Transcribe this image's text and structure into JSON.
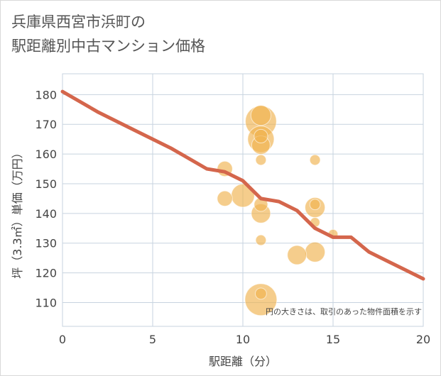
{
  "title_line1": "兵庫県西宮市浜町の",
  "title_line2": "駅距離別中古マンション価格",
  "chart_data": {
    "type": "scatter",
    "xlabel": "駅距離（分）",
    "ylabel": "坪（3.3㎡）単価（万円）",
    "xlim": [
      0,
      20
    ],
    "ylim": [
      102,
      187
    ],
    "xticks": [
      0,
      5,
      10,
      15,
      20
    ],
    "yticks": [
      110,
      120,
      130,
      140,
      150,
      160,
      170,
      180
    ],
    "grid": true,
    "note": "円の大きさは、取引のあった物件面積を示す",
    "bubble_color": "#f0b24f",
    "line_color": "#d4664c",
    "bubbles": [
      {
        "x": 9,
        "y": 155,
        "size": 1.2
      },
      {
        "x": 9,
        "y": 145,
        "size": 1.2
      },
      {
        "x": 10,
        "y": 146,
        "size": 2.2
      },
      {
        "x": 11,
        "y": 173,
        "size": 1.8
      },
      {
        "x": 11,
        "y": 171,
        "size": 3.2
      },
      {
        "x": 11,
        "y": 166,
        "size": 1.0
      },
      {
        "x": 11,
        "y": 165,
        "size": 2.6
      },
      {
        "x": 11,
        "y": 163,
        "size": 1.6
      },
      {
        "x": 11,
        "y": 158,
        "size": 0.6
      },
      {
        "x": 11,
        "y": 143,
        "size": 1.0
      },
      {
        "x": 11,
        "y": 140,
        "size": 1.7
      },
      {
        "x": 11,
        "y": 131,
        "size": 0.6
      },
      {
        "x": 11,
        "y": 113,
        "size": 0.7
      },
      {
        "x": 11,
        "y": 111,
        "size": 3.3
      },
      {
        "x": 13,
        "y": 126,
        "size": 1.7
      },
      {
        "x": 14,
        "y": 158,
        "size": 0.6
      },
      {
        "x": 14,
        "y": 143,
        "size": 0.6
      },
      {
        "x": 14,
        "y": 142,
        "size": 1.8
      },
      {
        "x": 14,
        "y": 137,
        "size": 0.5
      },
      {
        "x": 14,
        "y": 127,
        "size": 1.8
      },
      {
        "x": 15,
        "y": 133,
        "size": 0.5
      }
    ],
    "trend_line": {
      "x": [
        0,
        2,
        4,
        6,
        8,
        9,
        10,
        11,
        12,
        13,
        14,
        15,
        16,
        17,
        18,
        19,
        20
      ],
      "y": [
        181,
        174,
        168,
        162,
        155,
        154,
        151,
        145,
        144,
        141,
        135,
        132,
        132,
        127,
        124,
        121,
        118
      ]
    }
  }
}
